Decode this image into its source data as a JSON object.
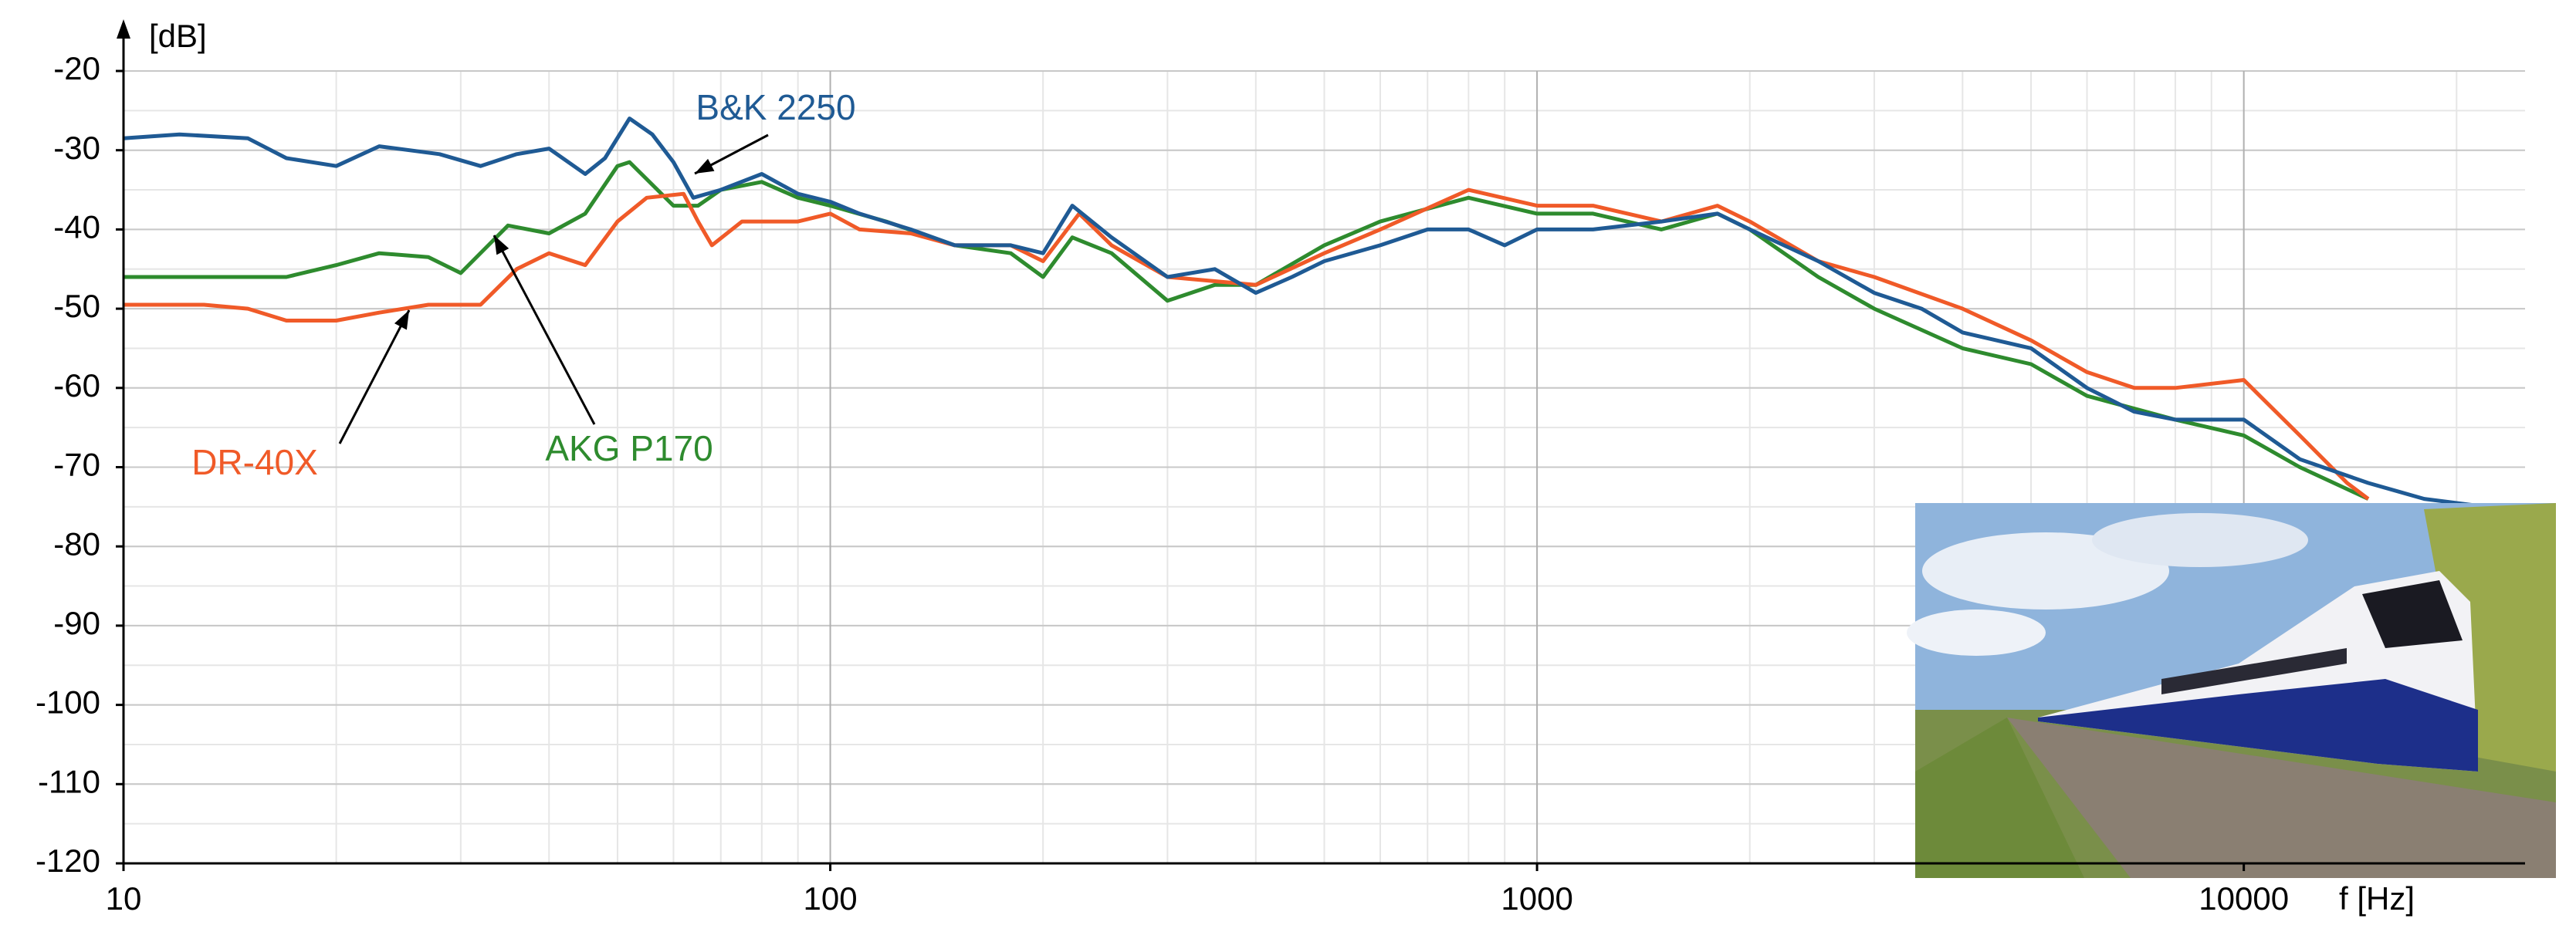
{
  "chart_data": {
    "type": "line",
    "y_label": "[dB]",
    "x_label": "f [Hz]",
    "log_x": true,
    "grid": true,
    "xlim": [
      10,
      25000
    ],
    "ylim": [
      -120,
      -20
    ],
    "xticks": [
      10,
      100,
      1000,
      10000
    ],
    "yticks": [
      -20,
      -30,
      -40,
      -50,
      -60,
      -70,
      -80,
      -90,
      -100,
      -110,
      -120
    ],
    "series": [
      {
        "name": "B&K 2250",
        "color": "#1f5a94",
        "x": [
          10,
          12,
          15,
          17,
          20,
          23,
          28,
          32,
          36,
          40,
          45,
          48,
          52,
          56,
          60,
          64,
          70,
          80,
          90,
          100,
          110,
          130,
          150,
          180,
          200,
          220,
          250,
          300,
          350,
          400,
          450,
          500,
          600,
          700,
          800,
          900,
          1000,
          1200,
          1500,
          1800,
          2000,
          2500,
          3000,
          3500,
          4000,
          5000,
          6000,
          7000,
          8000,
          10000,
          12000,
          15000,
          18000,
          22000
        ],
        "values": [
          -28.5,
          -28,
          -28.5,
          -31,
          -32,
          -29.5,
          -30.5,
          -32,
          -30.5,
          -29.8,
          -33,
          -31,
          -26,
          -28,
          -31.5,
          -36,
          -35,
          -33,
          -35.5,
          -36.5,
          -38,
          -40,
          -42,
          -42,
          -43,
          -37,
          -41,
          -46,
          -45,
          -48,
          -46,
          -44,
          -42,
          -40,
          -40,
          -42,
          -40,
          -40,
          -39,
          -38,
          -40,
          -44,
          -48,
          -50,
          -53,
          -55,
          -60,
          -63,
          -64,
          -64,
          -69,
          -72,
          -74,
          -75
        ]
      },
      {
        "name": "AKG P170",
        "color": "#2e8b2e",
        "x": [
          10,
          12,
          15,
          17,
          20,
          23,
          27,
          30,
          35,
          40,
          45,
          50,
          52,
          60,
          65,
          70,
          80,
          90,
          100,
          120,
          150,
          180,
          200,
          220,
          250,
          300,
          350,
          400,
          500,
          600,
          800,
          1000,
          1200,
          1500,
          1800,
          2000,
          2500,
          3000,
          4000,
          5000,
          6000,
          8000,
          10000,
          12000,
          15000
        ],
        "values": [
          -46,
          -46,
          -46,
          -46,
          -44.5,
          -43,
          -43.5,
          -45.5,
          -39.5,
          -40.5,
          -38,
          -32,
          -31.5,
          -37,
          -37,
          -35,
          -34,
          -36,
          -37,
          -39,
          -42,
          -43,
          -46,
          -41,
          -43,
          -49,
          -47,
          -47,
          -42,
          -39,
          -36,
          -38,
          -38,
          -40,
          -38,
          -40,
          -46,
          -50,
          -55,
          -57,
          -61,
          -64,
          -66,
          -70,
          -74
        ]
      },
      {
        "name": "DR-40X",
        "color": "#f05a28",
        "x": [
          10,
          13,
          15,
          17,
          20,
          23,
          27,
          32,
          36,
          40,
          45,
          50,
          55,
          62,
          65,
          68,
          75,
          90,
          100,
          110,
          130,
          150,
          180,
          200,
          225,
          250,
          300,
          400,
          500,
          600,
          800,
          1000,
          1200,
          1500,
          1800,
          2000,
          2500,
          3000,
          4000,
          5000,
          6000,
          7000,
          8000,
          10000,
          12000,
          14000,
          15000
        ],
        "values": [
          -49.5,
          -49.5,
          -50,
          -51.5,
          -51.5,
          -50.5,
          -49.5,
          -49.5,
          -45,
          -43,
          -44.5,
          -39,
          -36,
          -35.5,
          -39,
          -42,
          -39,
          -39,
          -38,
          -40,
          -40.5,
          -42,
          -42,
          -44,
          -38,
          -42,
          -46,
          -47,
          -43,
          -40,
          -35,
          -37,
          -37,
          -39,
          -37,
          -39,
          -44,
          -46,
          -50,
          -54,
          -58,
          -60,
          -60,
          -59,
          -66,
          -72,
          -74
        ]
      }
    ]
  }
}
